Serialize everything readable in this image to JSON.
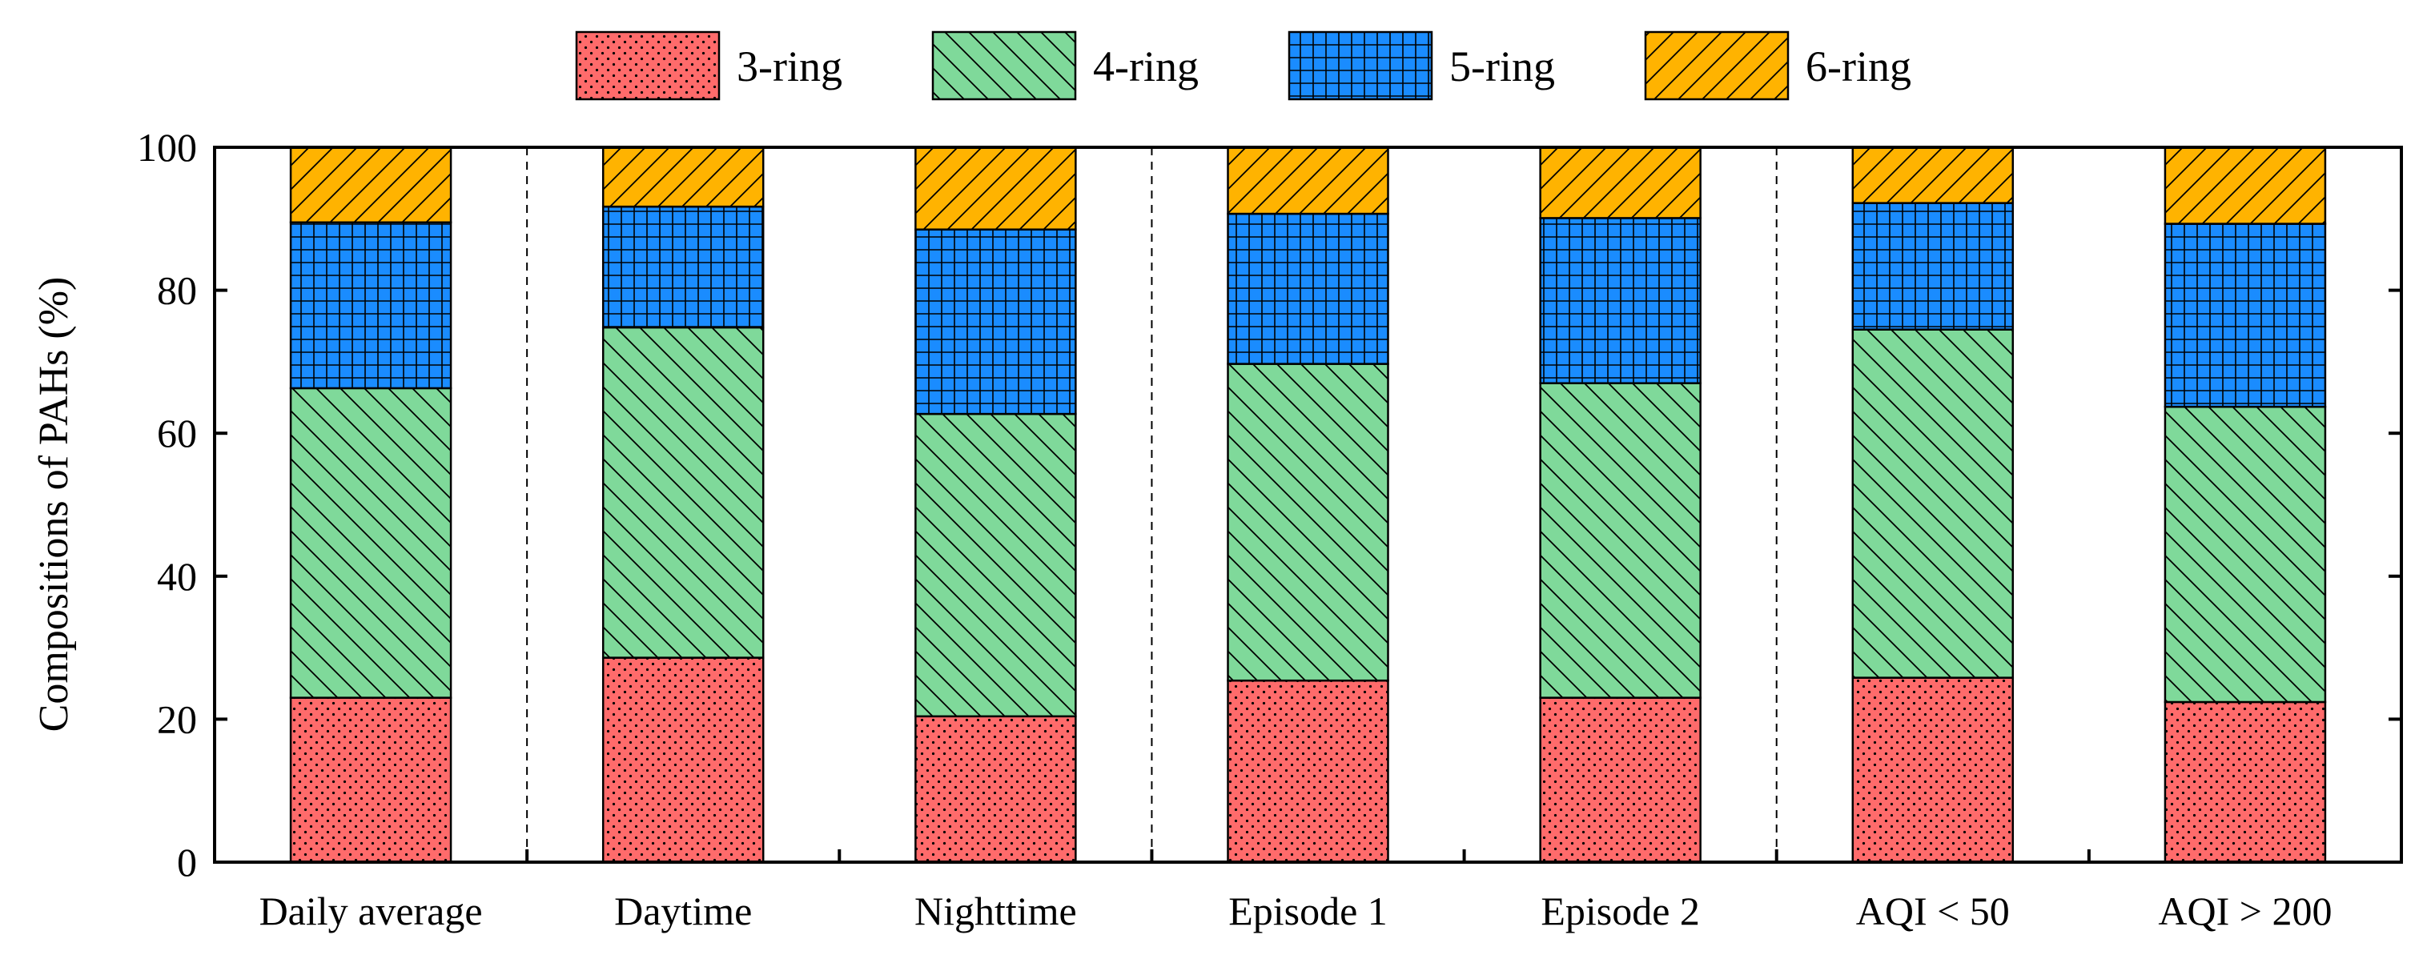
{
  "chart_data": {
    "type": "bar",
    "stacked": true,
    "title": "",
    "xlabel": "",
    "ylabel": "Compositions of PAHs (%)",
    "ylim": [
      0,
      100
    ],
    "yticks": [
      0,
      20,
      40,
      60,
      80,
      100
    ],
    "categories": [
      "Daily average",
      "Daytime",
      "Nighttime",
      "Episode 1",
      "Episode 2",
      "AQI < 50",
      "AQI > 200"
    ],
    "group_separators_after": [
      0,
      2,
      4
    ],
    "legend_position": "top-center",
    "grid": false,
    "series": [
      {
        "name": "3-ring",
        "color": "#ff6b6b",
        "pattern": "dots",
        "values": [
          23.0,
          28.6,
          20.4,
          25.4,
          23.0,
          25.8,
          22.4
        ]
      },
      {
        "name": "4-ring",
        "color": "#7fd99a",
        "pattern": "back-diagonal",
        "values": [
          43.3,
          46.2,
          42.3,
          44.3,
          44.0,
          48.7,
          41.3
        ]
      },
      {
        "name": "5-ring",
        "color": "#1a8cff",
        "pattern": "grid",
        "values": [
          23.2,
          16.9,
          25.8,
          21.0,
          23.1,
          17.7,
          25.6
        ]
      },
      {
        "name": "6-ring",
        "color": "#ffb300",
        "pattern": "forward-diagonal",
        "values": [
          10.5,
          8.3,
          11.5,
          9.3,
          9.9,
          7.8,
          10.7
        ]
      }
    ]
  }
}
